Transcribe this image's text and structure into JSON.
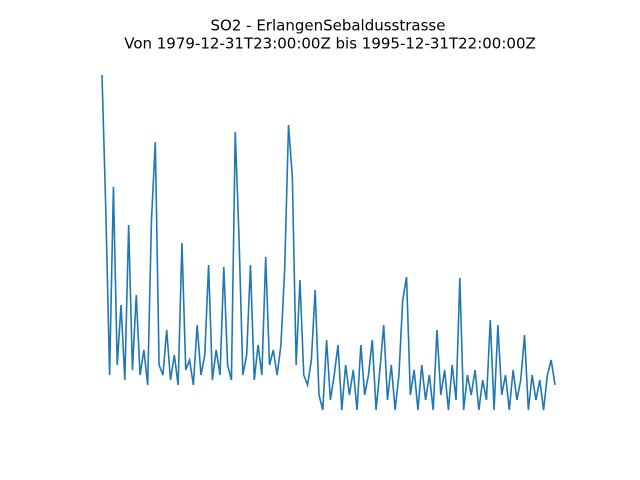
{
  "chart_data": {
    "type": "line",
    "title": "SO2 - ErlangenSebaldusstrasse",
    "subtitle": "Von 1979-12-31T23:00:00Z bis 1995-12-31T22:00:00Z",
    "color": "#1f77b4",
    "ylim": [
      -10,
      340
    ],
    "values": [
      330,
      195,
      30,
      218,
      40,
      100,
      25,
      180,
      35,
      110,
      30,
      55,
      20,
      185,
      263,
      40,
      30,
      75,
      25,
      50,
      20,
      162,
      35,
      45,
      20,
      80,
      30,
      50,
      140,
      25,
      55,
      30,
      138,
      40,
      25,
      273,
      167,
      30,
      50,
      140,
      25,
      60,
      30,
      148,
      40,
      55,
      30,
      60,
      137,
      280,
      228,
      40,
      125,
      30,
      20,
      45,
      115,
      10,
      -5,
      65,
      5,
      30,
      60,
      -5,
      40,
      10,
      35,
      -5,
      60,
      10,
      30,
      65,
      -5,
      35,
      80,
      5,
      40,
      -5,
      30,
      105,
      128,
      10,
      35,
      -5,
      40,
      5,
      30,
      -5,
      75,
      10,
      35,
      -5,
      40,
      5,
      127,
      -5,
      30,
      10,
      35,
      -5,
      25,
      5,
      85,
      -5,
      80,
      10,
      30,
      -5,
      35,
      5,
      25,
      70,
      -5,
      30,
      5,
      25,
      -5,
      30,
      45,
      20
    ]
  }
}
